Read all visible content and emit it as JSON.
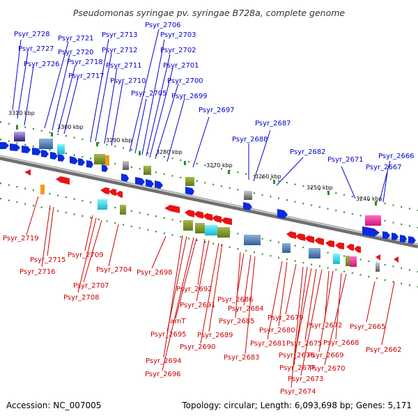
{
  "title": "Pseudomonas syringae pv. syringae B728a, complete genome",
  "footer": {
    "accession": "Accession: NC_007005",
    "summary": "Topology: circular; Length: 6,093,698 bp; Genes: 5,171"
  },
  "colors": {
    "forward": "#0a2adf",
    "reverse": "#e81313",
    "ruler_tick": "#2e8b2e",
    "backbone": "#777777"
  },
  "kbp_labels": [
    "3310 kbp",
    "3300 kbp",
    "3290 kbp",
    "3280 kbp",
    "3270 kbp",
    "3260 kbp",
    "3250 kbp",
    "3240 kbp"
  ],
  "top_labels": [
    "Psyr_2728",
    "Psyr_2727",
    "Psyr_2726",
    "Psyr_2721",
    "Psyr_2720",
    "Psyr_2718",
    "Psyr_2717",
    "Psyr_2713",
    "Psyr_2712",
    "Psyr_2711",
    "Psyr_2710",
    "Psyr_2706",
    "Psyr_2705",
    "Psyr_2703",
    "Psyr_2702",
    "Psyr_2701",
    "Psyr_2700",
    "Psyr_2699",
    "Psyr_2697",
    "Psyr_2688",
    "Psyr_2687",
    "Psyr_2682",
    "Psyr_2671",
    "Psyr_2666",
    "Psyr_2667"
  ],
  "bottom_labels": [
    "Psyr_2719",
    "Psyr_2715",
    "Psyr_2716",
    "Psyr_2709",
    "Psyr_2707",
    "Psyr_2708",
    "Psyr_2704",
    "Psyr_2698",
    "Psyr_2692",
    "Psyr_2691",
    "arnT",
    "Psyr_2695",
    "Psyr_2694",
    "Psyr_2696",
    "Psyr_2690",
    "Psyr_2689",
    "Psyr_2686",
    "Psyr_2684",
    "Psyr_2685",
    "Psyr_2683",
    "Psyr_2679",
    "Psyr_2680",
    "Psyr_2681",
    "Psyr_2672",
    "Psyr_2675",
    "Psyr_2676",
    "Psyr_2668",
    "Psyr_2669",
    "Psyr_2677",
    "Psyr_2670",
    "Psyr_2673",
    "Psyr_2674",
    "Psyr_2665",
    "Psyr_2662"
  ]
}
